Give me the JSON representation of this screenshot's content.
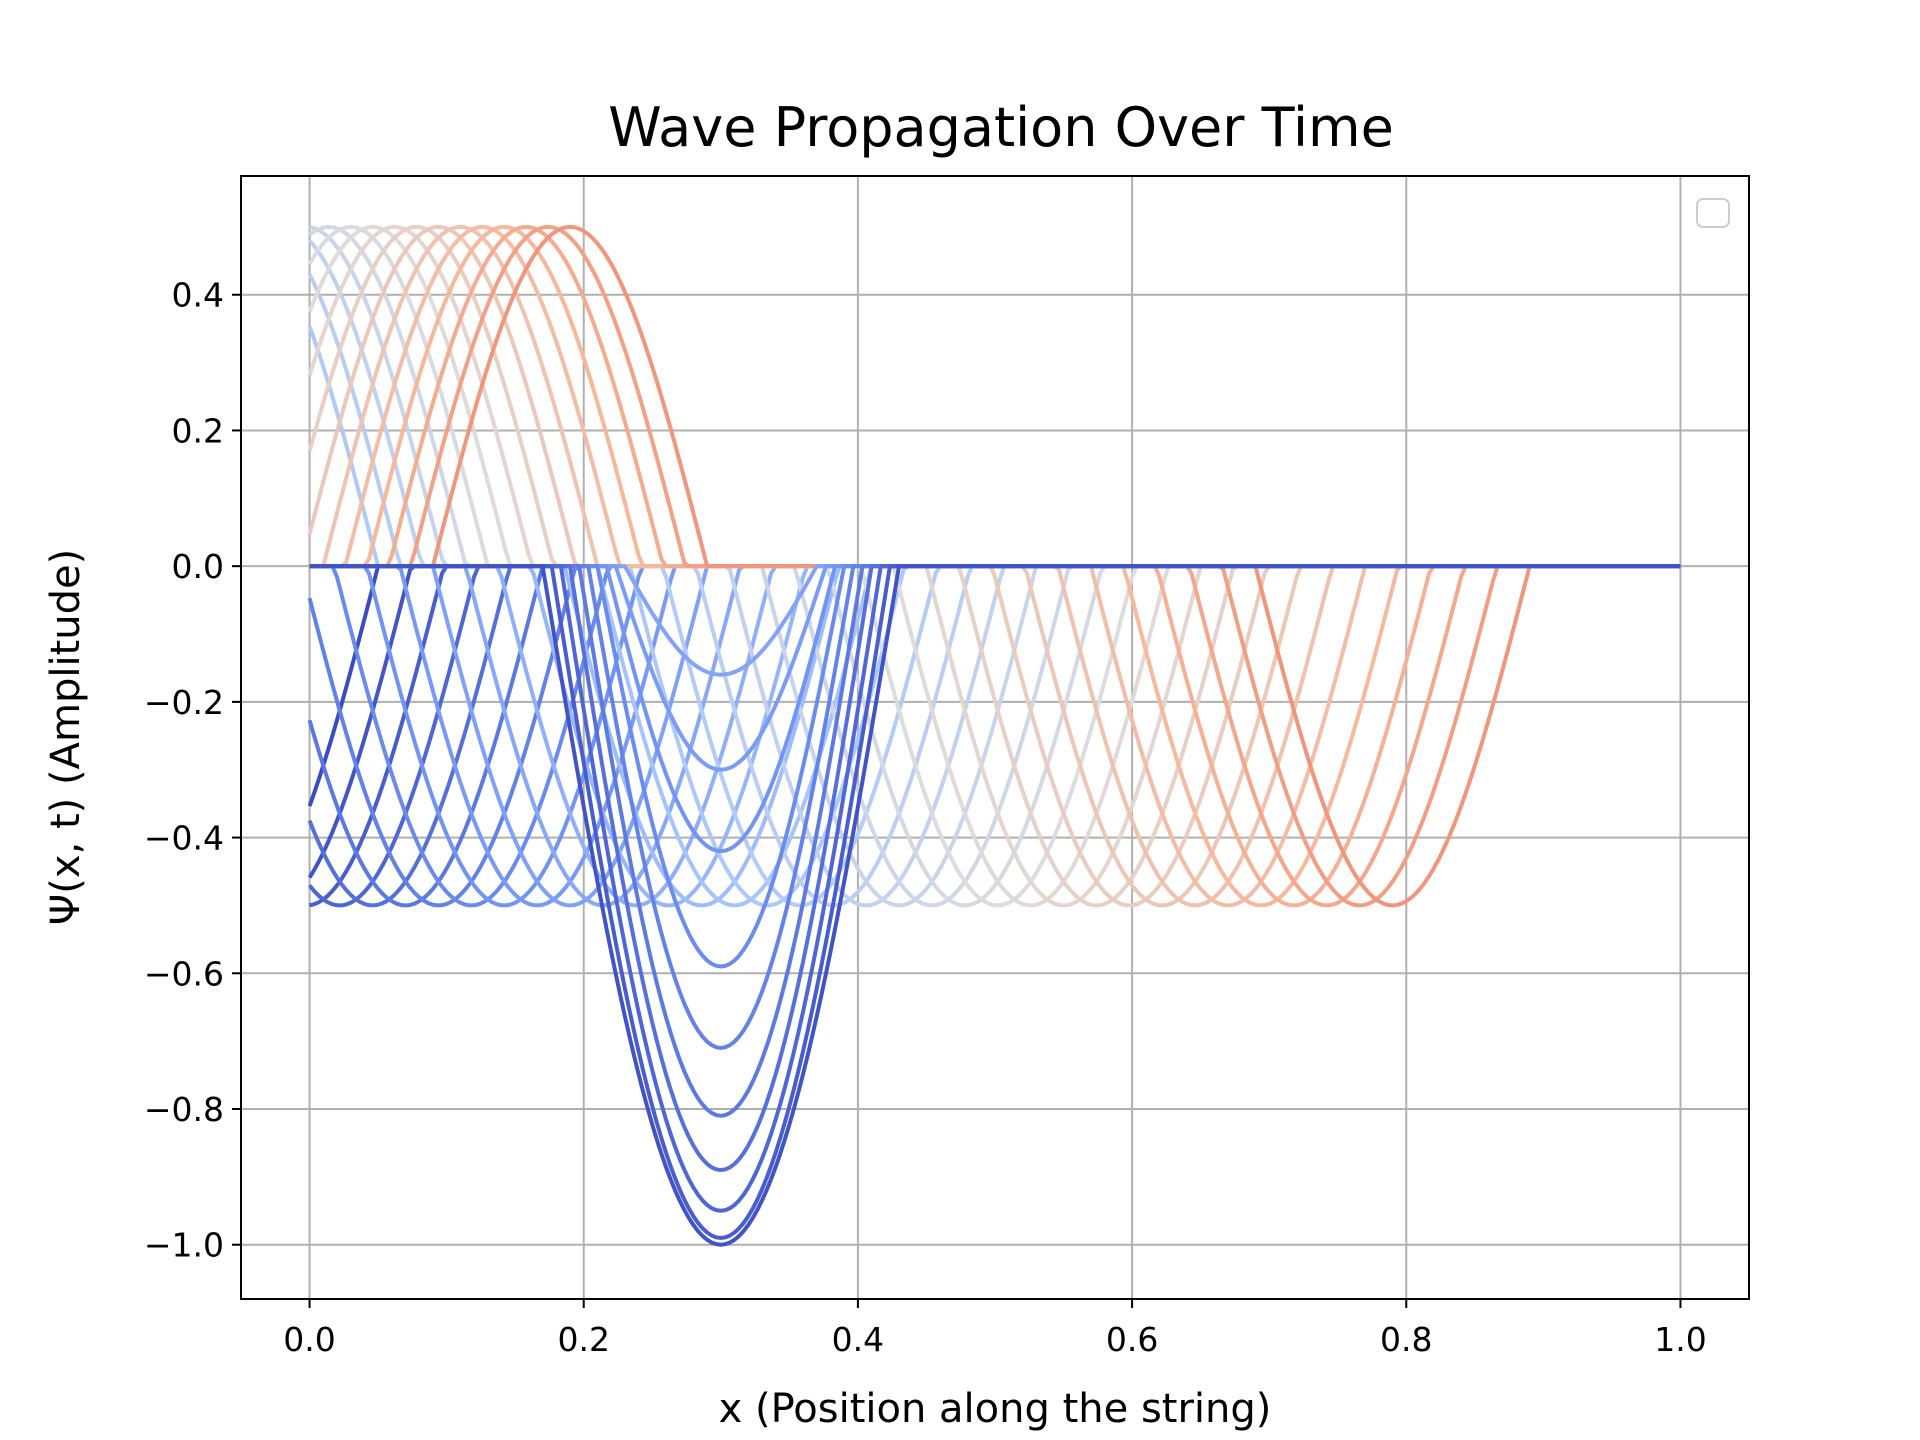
{
  "chart_data": {
    "type": "line",
    "title": "Wave Propagation Over Time",
    "xlabel": "x (Position along the string)",
    "ylabel": "Ψ(x, t) (Amplitude)",
    "xlim": [
      -0.05,
      1.05
    ],
    "ylim": [
      -1.08,
      0.575
    ],
    "x_ticks": [
      0.0,
      0.2,
      0.4,
      0.6,
      0.8,
      1.0
    ],
    "x_tick_labels": [
      "0.0",
      "0.2",
      "0.4",
      "0.6",
      "0.8",
      "1.0"
    ],
    "y_ticks": [
      0.4,
      0.2,
      0.0,
      -0.2,
      -0.4,
      -0.6,
      -0.8,
      -1.0
    ],
    "y_tick_labels": [
      "0.4",
      "0.2",
      "0.0",
      "−0.2",
      "−0.4",
      "−0.6",
      "−0.8",
      "−1.0"
    ],
    "grid": true,
    "legend": "top-right, empty",
    "colormap": "coolwarm",
    "colormap_stops": [
      "#3b4cc0",
      "#6f92f3",
      "#aac7fd",
      "#dddddd",
      "#f7b89c",
      "#e7745b",
      "#b40426"
    ],
    "upper_pulse": {
      "description": "positive half-wave pulse of amplitude 0.5 and width 0.2 moving right",
      "amplitude": 0.5,
      "width": 0.2,
      "start_x_range": [
        -0.15,
        0.09
      ],
      "color_range": [
        0.35,
        0.75
      ]
    },
    "lower_pulse": {
      "description": "negative half-wave pulse of amplitude 0.5 and width 0.2 reflected at x=0 and moving right",
      "amplitude": -0.5,
      "width": 0.2,
      "start_x_range": [
        -0.15,
        0.69
      ],
      "color_range": [
        0.0,
        0.75
      ]
    },
    "superposition": {
      "center_x": 0.3,
      "minimum_values": [
        -0.16,
        -0.3,
        -0.42,
        -0.59,
        -0.71,
        -0.81,
        -0.89,
        -0.95,
        -0.99,
        -1.0
      ]
    }
  }
}
